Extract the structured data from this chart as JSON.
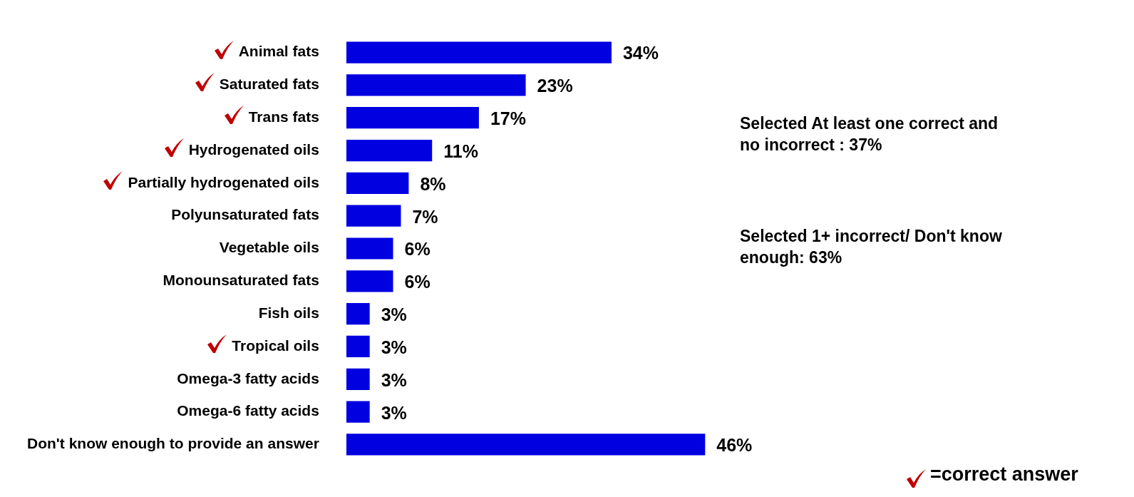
{
  "chart_data": {
    "type": "bar",
    "orientation": "horizontal",
    "categories": [
      "Animal fats",
      "Saturated fats",
      "Trans fats",
      "Hydrogenated oils",
      "Partially hydrogenated oils",
      "Polyunsaturated fats",
      "Vegetable oils",
      "Monounsaturated fats",
      "Fish oils",
      "Tropical oils",
      "Omega-3 fatty acids",
      "Omega-6 fatty acids",
      "Don't know enough to provide an answer"
    ],
    "values": [
      34,
      23,
      17,
      11,
      8,
      7,
      6,
      6,
      3,
      3,
      3,
      3,
      46
    ],
    "value_labels": [
      "34%",
      "23%",
      "17%",
      "11%",
      "8%",
      "7%",
      "6%",
      "6%",
      "3%",
      "3%",
      "3%",
      "3%",
      "46%"
    ],
    "color": "#0000e0",
    "grid": false,
    "legend": false,
    "annotations": [
      "Selected At least one correct and no incorrect : 37%",
      "Selected 1+ incorrect/ Don't know enough: 63%",
      "=correct answer"
    ]
  }
}
